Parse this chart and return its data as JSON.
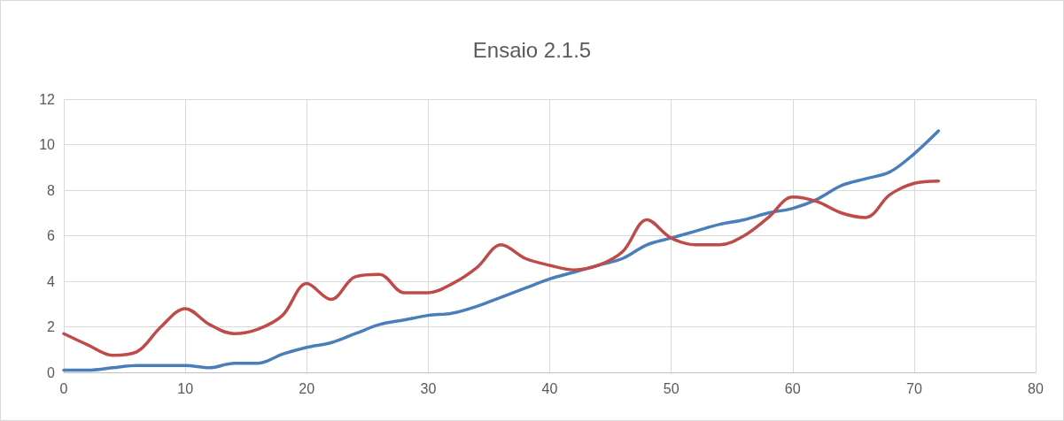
{
  "chart_data": {
    "type": "line",
    "title": "Ensaio 2.1.5",
    "x": [
      0,
      2,
      4,
      6,
      8,
      10,
      12,
      14,
      16,
      18,
      20,
      22,
      24,
      26,
      28,
      30,
      32,
      34,
      36,
      38,
      40,
      42,
      44,
      46,
      48,
      50,
      52,
      54,
      56,
      58,
      60,
      62,
      64,
      66,
      68,
      70,
      72
    ],
    "series": [
      {
        "color": "#4a7ebb",
        "values": [
          0.1,
          0.1,
          0.2,
          0.3,
          0.3,
          0.3,
          0.2,
          0.4,
          0.4,
          0.8,
          1.1,
          1.3,
          1.7,
          2.1,
          2.3,
          2.5,
          2.6,
          2.9,
          3.3,
          3.7,
          4.1,
          4.4,
          4.7,
          5.0,
          5.6,
          5.9,
          6.2,
          6.5,
          6.7,
          7.0,
          7.2,
          7.6,
          8.2,
          8.5,
          8.8,
          9.6,
          10.6
        ]
      },
      {
        "color": "#be4b48",
        "values": [
          1.7,
          1.2,
          0.75,
          0.9,
          2.0,
          2.8,
          2.1,
          1.7,
          1.9,
          2.5,
          3.9,
          3.2,
          4.2,
          4.3,
          3.5,
          3.5,
          3.9,
          4.6,
          5.6,
          5.0,
          4.7,
          4.5,
          4.7,
          5.3,
          6.7,
          5.9,
          5.6,
          5.6,
          6.0,
          6.8,
          7.7,
          7.5,
          7.0,
          6.8,
          7.8,
          8.3,
          8.4
        ]
      }
    ],
    "xlim": [
      0,
      80
    ],
    "xticks": [
      0,
      10,
      20,
      30,
      40,
      50,
      60,
      70,
      80
    ],
    "ylim": [
      0,
      12
    ],
    "yticks": [
      0,
      2,
      4,
      6,
      8,
      10,
      12
    ],
    "grid": true,
    "marker": "none",
    "line_style": "solid"
  }
}
